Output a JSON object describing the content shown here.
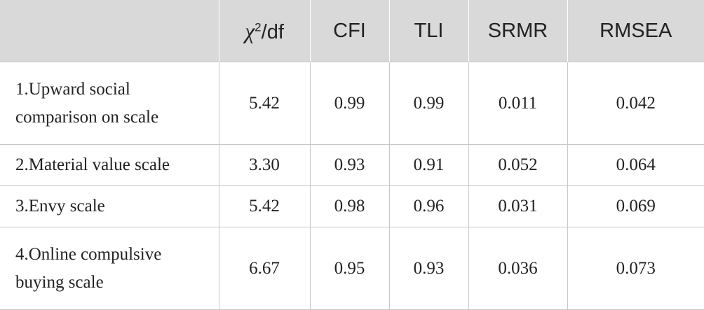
{
  "header": {
    "col0": "",
    "chi_symbol": "χ",
    "chi_superscript": "2",
    "chi_suffix": "/df",
    "cfi": "CFI",
    "tli": "TLI",
    "srmr": "SRMR",
    "rmsea": "RMSEA"
  },
  "rows": [
    {
      "label": "1.Upward social comparison on scale",
      "chi_df": "5.42",
      "cfi": "0.99",
      "tli": "0.99",
      "srmr": "0.011",
      "rmsea": "0.042"
    },
    {
      "label": "2.Material value scale",
      "chi_df": "3.30",
      "cfi": "0.93",
      "tli": "0.91",
      "srmr": "0.052",
      "rmsea": "0.064"
    },
    {
      "label": "3.Envy scale",
      "chi_df": "5.42",
      "cfi": "0.98",
      "tli": "0.96",
      "srmr": "0.031",
      "rmsea": "0.069"
    },
    {
      "label": "4.Online compulsive buying scale",
      "chi_df": "6.67",
      "cfi": "0.95",
      "tli": "0.93",
      "srmr": "0.036",
      "rmsea": "0.073"
    }
  ],
  "colors": {
    "header_bg": "#d9d9d9",
    "text": "#222222",
    "border": "#c8c8c8"
  }
}
